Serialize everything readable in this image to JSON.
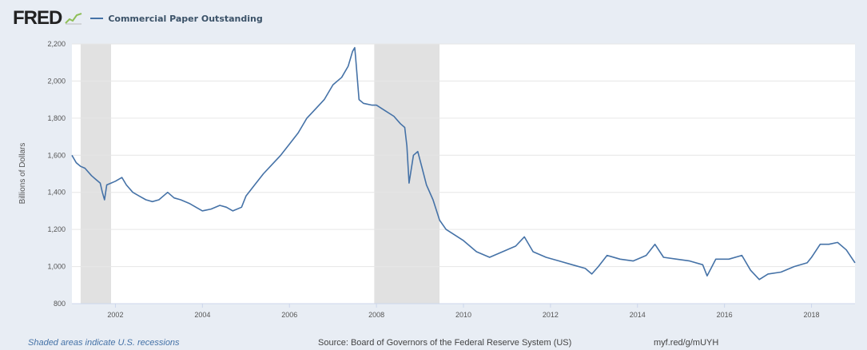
{
  "header": {
    "logo": "FRED",
    "legend_label": "Commercial Paper Outstanding"
  },
  "colors": {
    "series": "#4572a7",
    "recession": "#e1e1e1",
    "background": "#e8edf4",
    "plot": "#ffffff"
  },
  "footer": {
    "note": "Shaded areas indicate U.S. recessions",
    "source": "Source: Board of Governors of the Federal Reserve System (US)",
    "link": "myf.red/g/mUYH"
  },
  "chart_data": {
    "type": "line",
    "title": "",
    "xlabel": "",
    "ylabel": "Billions of Dollars",
    "xlim": [
      2001.0,
      2019.0
    ],
    "ylim": [
      800,
      2200
    ],
    "y_ticks": [
      800,
      1000,
      1200,
      1400,
      1600,
      1800,
      2000,
      2200
    ],
    "y_tick_labels": [
      "800",
      "1,000",
      "1,200",
      "1,400",
      "1,600",
      "1,800",
      "2,000",
      "2,200"
    ],
    "x_ticks": [
      2002,
      2004,
      2006,
      2008,
      2010,
      2012,
      2014,
      2016,
      2018
    ],
    "grid": true,
    "recessions": [
      [
        2001.2,
        2001.9
      ],
      [
        2007.95,
        2009.45
      ]
    ],
    "series": [
      {
        "name": "Commercial Paper Outstanding",
        "x": [
          2001.0,
          2001.1,
          2001.2,
          2001.3,
          2001.45,
          2001.55,
          2001.65,
          2001.7,
          2001.75,
          2001.8,
          2001.9,
          2002.0,
          2002.15,
          2002.25,
          2002.4,
          2002.55,
          2002.7,
          2002.85,
          2003.0,
          2003.2,
          2003.35,
          2003.5,
          2003.7,
          2003.85,
          2004.0,
          2004.2,
          2004.4,
          2004.55,
          2004.7,
          2004.9,
          2005.0,
          2005.2,
          2005.4,
          2005.6,
          2005.8,
          2006.0,
          2006.2,
          2006.4,
          2006.6,
          2006.8,
          2007.0,
          2007.2,
          2007.35,
          2007.45,
          2007.5,
          2007.52,
          2007.6,
          2007.7,
          2007.9,
          2008.0,
          2008.2,
          2008.4,
          2008.55,
          2008.65,
          2008.7,
          2008.75,
          2008.85,
          2008.95,
          2009.05,
          2009.15,
          2009.3,
          2009.45,
          2009.6,
          2009.8,
          2010.0,
          2010.3,
          2010.6,
          2010.9,
          2011.2,
          2011.4,
          2011.6,
          2011.9,
          2012.2,
          2012.5,
          2012.8,
          2012.95,
          2013.1,
          2013.3,
          2013.6,
          2013.9,
          2014.2,
          2014.4,
          2014.6,
          2014.9,
          2015.2,
          2015.5,
          2015.6,
          2015.8,
          2016.1,
          2016.4,
          2016.6,
          2016.8,
          2017.0,
          2017.3,
          2017.6,
          2017.9,
          2018.0,
          2018.2,
          2018.4,
          2018.6,
          2018.8,
          2019.0
        ],
        "values": [
          1600,
          1560,
          1540,
          1530,
          1490,
          1470,
          1450,
          1400,
          1360,
          1440,
          1450,
          1460,
          1480,
          1440,
          1400,
          1380,
          1360,
          1350,
          1360,
          1400,
          1370,
          1360,
          1340,
          1320,
          1300,
          1310,
          1330,
          1320,
          1300,
          1320,
          1380,
          1440,
          1500,
          1550,
          1600,
          1660,
          1720,
          1800,
          1850,
          1900,
          1980,
          2020,
          2080,
          2160,
          2180,
          2130,
          1900,
          1880,
          1870,
          1870,
          1840,
          1810,
          1770,
          1750,
          1650,
          1450,
          1600,
          1620,
          1530,
          1440,
          1360,
          1250,
          1200,
          1170,
          1140,
          1080,
          1050,
          1080,
          1110,
          1160,
          1080,
          1050,
          1030,
          1010,
          990,
          960,
          1000,
          1060,
          1040,
          1030,
          1060,
          1120,
          1050,
          1040,
          1030,
          1010,
          950,
          1040,
          1040,
          1060,
          980,
          930,
          960,
          970,
          1000,
          1020,
          1050,
          1120,
          1120,
          1130,
          1090,
          1020
        ]
      }
    ]
  }
}
